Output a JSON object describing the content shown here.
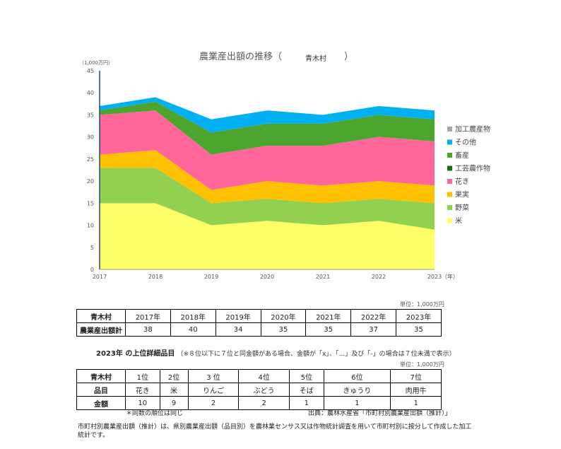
{
  "chart_data": {
    "type": "area",
    "stacked": true,
    "title_main": "農業産出額の推移（",
    "title_place": "青木村",
    "title_close": "）",
    "y_unit": "（1,000万円）",
    "x_unit": "（年）",
    "x": [
      "2017",
      "2018",
      "2019",
      "2020",
      "2021",
      "2022",
      "2023"
    ],
    "ylim": [
      0,
      45
    ],
    "yticks": [
      "0",
      "5",
      "10",
      "15",
      "20",
      "25",
      "30",
      "35",
      "40",
      "45"
    ],
    "legend_position": "right",
    "series": [
      {
        "name": "米",
        "color": "#ffff66",
        "values": [
          15,
          15,
          10,
          11,
          10,
          11,
          9
        ]
      },
      {
        "name": "野菜",
        "color": "#92d050",
        "values": [
          8,
          8,
          5,
          5,
          5,
          5,
          6
        ]
      },
      {
        "name": "果実",
        "color": "#ffc000",
        "values": [
          3,
          4,
          3,
          4,
          4,
          4,
          4
        ]
      },
      {
        "name": "花き",
        "color": "#ff6699",
        "values": [
          9,
          9,
          8,
          8,
          9,
          10,
          10
        ]
      },
      {
        "name": "工芸農作物",
        "color": "#1e6b1e",
        "values": [
          0,
          0,
          0,
          0,
          0,
          0,
          0
        ]
      },
      {
        "name": "畜産",
        "color": "#4ca52e",
        "values": [
          1,
          2,
          5,
          5,
          5,
          5,
          5
        ]
      },
      {
        "name": "その他",
        "color": "#00b0f0",
        "values": [
          1,
          1,
          3,
          3,
          2,
          2,
          2
        ]
      },
      {
        "name": "加工農産物",
        "color": "#a6a6a6",
        "values": [
          0,
          0,
          0,
          0,
          0,
          0,
          0
        ]
      }
    ]
  },
  "table1": {
    "unit": "単位：1,000万円",
    "header": [
      "青木村",
      "2017年",
      "2018年",
      "2019年",
      "2020年",
      "2021年",
      "2022年",
      "2023年"
    ],
    "row": [
      "農業産出額計",
      "38",
      "40",
      "34",
      "35",
      "35",
      "37",
      "35"
    ]
  },
  "section2": {
    "title": "2023年 の上位詳細品目",
    "note": "（※８位以下に７位と同金額がある場合、金額が「x」、「…」及び「-」の場合は７位未満で表示）"
  },
  "table2": {
    "unit": "単位：1,000万円",
    "header": [
      "青木村",
      "1位",
      "2位",
      "3 位",
      "4位",
      "5位",
      "6位",
      "7位"
    ],
    "items": [
      "品目",
      "花き",
      "米",
      "りんご",
      "ぶどう",
      "そば",
      "きゅうり",
      "肉用牛"
    ],
    "amounts": [
      "金額",
      "10",
      "9",
      "2",
      "2",
      "1",
      "1",
      "1"
    ]
  },
  "footnote_rank": "＊同数の順位は同じ",
  "source": "出典：農林水産省「市町村別農業産出額（推計）」",
  "description": "市町村別農業産出額（推計）は、県別農業産出額（品目別）を農林業センサス又は作物統計調査を用いて市町村別に按分して作成した加工統計です。"
}
